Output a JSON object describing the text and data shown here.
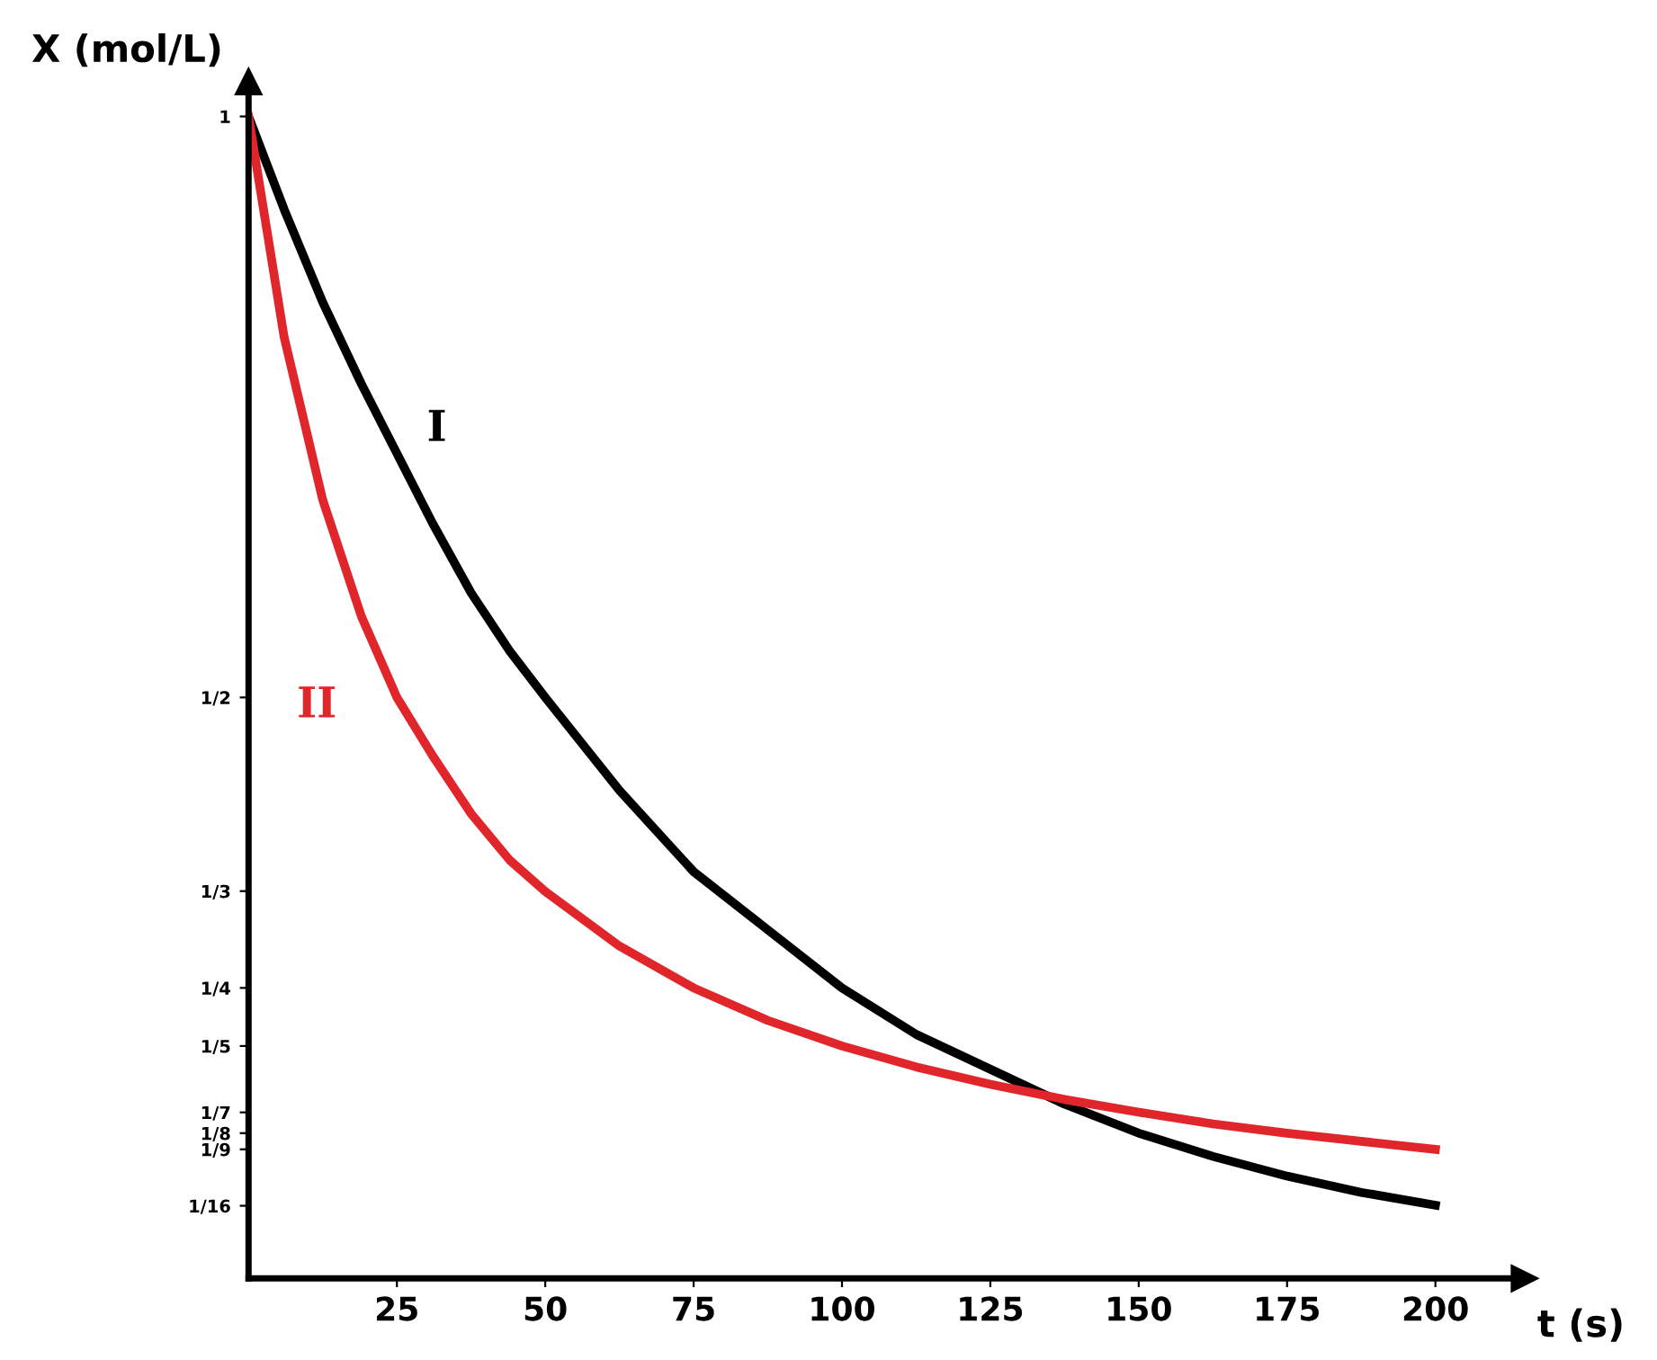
{
  "chart_data": {
    "type": "line",
    "xlabel": "t (s)",
    "ylabel": "X (mol/L)",
    "x": [
      0,
      6,
      12.5,
      19,
      25,
      31,
      37.5,
      44,
      50,
      62.5,
      75,
      87.5,
      100,
      112.5,
      125,
      137.5,
      150,
      162.5,
      175,
      187.5,
      200
    ],
    "series": [
      {
        "name": "I",
        "color": "#000000",
        "values": [
          1,
          0.92,
          0.84,
          0.77,
          0.71,
          0.65,
          0.59,
          0.54,
          0.5,
          0.42,
          0.35,
          0.3,
          0.25,
          0.21,
          0.18,
          0.15,
          0.125,
          0.105,
          0.088,
          0.074,
          0.063
        ]
      },
      {
        "name": "II",
        "color": "#e0262b",
        "values": [
          1,
          0.81,
          0.67,
          0.57,
          0.5,
          0.45,
          0.4,
          0.36,
          0.333,
          0.286,
          0.25,
          0.222,
          0.2,
          0.182,
          0.167,
          0.154,
          0.143,
          0.133,
          0.125,
          0.118,
          0.111
        ]
      }
    ],
    "xlim": [
      0,
      215
    ],
    "ylim": [
      0,
      1.03
    ],
    "xticks": [
      25,
      50,
      75,
      100,
      125,
      150,
      175,
      200
    ],
    "yticks": [
      {
        "value": 1,
        "label": "1"
      },
      {
        "value": 0.5,
        "label": "1/2"
      },
      {
        "value": 0.3333,
        "label": "1/3"
      },
      {
        "value": 0.25,
        "label": "1/4"
      },
      {
        "value": 0.2,
        "label": "1/5"
      },
      {
        "value": 0.1429,
        "label": "1/7"
      },
      {
        "value": 0.125,
        "label": "1/8"
      },
      {
        "value": 0.1111,
        "label": "1/9"
      },
      {
        "value": 0.0625,
        "label": "1/16"
      }
    ],
    "grid": false,
    "legend": false,
    "marker": "none",
    "line_style": "solid"
  }
}
